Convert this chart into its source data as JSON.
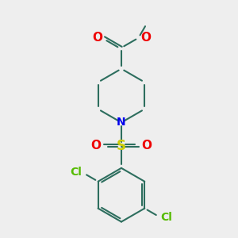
{
  "background_color": "#eeeeee",
  "bond_color": "#2d6e5e",
  "bond_width": 1.5,
  "N_color": "#0000ee",
  "O_color": "#ee0000",
  "S_color": "#cccc00",
  "Cl_color": "#55bb00",
  "figsize": [
    3.0,
    3.0
  ],
  "dpi": 100,
  "xlim": [
    0,
    10
  ],
  "ylim": [
    0,
    10
  ]
}
